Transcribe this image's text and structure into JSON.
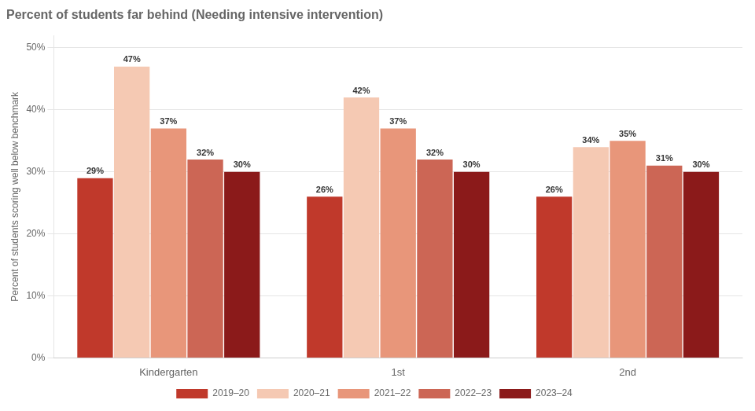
{
  "chart_data": {
    "type": "bar",
    "title": "Percent of students far behind (Needing intensive intervention)",
    "y_label": "Percent of students scoring well below benchmark",
    "categories": [
      "Kindergarten",
      "1st",
      "2nd"
    ],
    "series": [
      {
        "name": "2019–20",
        "color": "#c0392b",
        "values": [
          29,
          26,
          26
        ],
        "value_labels": [
          "29%",
          "26%",
          "26%"
        ]
      },
      {
        "name": "2020–21",
        "color": "#f5c9b3",
        "values": [
          47,
          42,
          34
        ],
        "value_labels": [
          "47%",
          "42%",
          "34%"
        ]
      },
      {
        "name": "2021–22",
        "color": "#e8967a",
        "values": [
          37,
          37,
          35
        ],
        "value_labels": [
          "37%",
          "37%",
          "35%"
        ]
      },
      {
        "name": "2022–23",
        "color": "#cc6655",
        "values": [
          32,
          32,
          31
        ],
        "value_labels": [
          "32%",
          "32%",
          "31%"
        ]
      },
      {
        "name": "2023–24",
        "color": "#8b1a1a",
        "values": [
          30,
          30,
          30
        ],
        "value_labels": [
          "30%",
          "30%",
          "30%"
        ]
      }
    ],
    "ylim": [
      0,
      52
    ],
    "yticks": [
      {
        "value": 0,
        "label": "0%"
      },
      {
        "value": 10,
        "label": "10%"
      },
      {
        "value": 20,
        "label": "20%"
      },
      {
        "value": 30,
        "label": "30%"
      },
      {
        "value": 40,
        "label": "40%"
      },
      {
        "value": 50,
        "label": "50%"
      }
    ],
    "grid": true,
    "legend": "bottom",
    "data_labels": true
  }
}
